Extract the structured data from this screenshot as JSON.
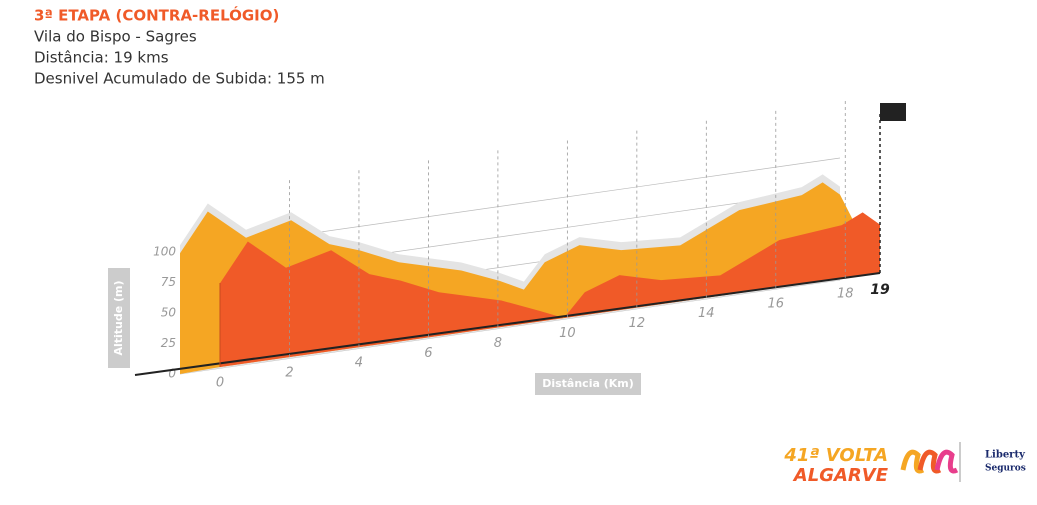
{
  "chart_data": {
    "type": "profile",
    "title": "3ª ETAPA (CONTRA-RELÓGIO)",
    "subtitle": [
      "Vila do Bispo - Sagres",
      "Distância: 19 kms",
      "Desnivel Acumulado de Subida: 155 m"
    ],
    "y_label": "Altitude (m)",
    "x_label": "Distância (Km)",
    "x": [
      0,
      0.8,
      1.9,
      3.2,
      4.3,
      5.2,
      6.3,
      8.1,
      9.2,
      9.9,
      10.5,
      11.5,
      12.7,
      14.4,
      16.1,
      17.9,
      18.5,
      19
    ],
    "values": [
      99,
      130,
      104,
      113,
      89,
      80,
      66,
      52,
      39,
      29,
      49,
      59,
      50,
      47,
      69,
      74,
      82,
      70
    ],
    "color": "#f5a623",
    "front_color": "#f05a28",
    "xlim": [
      0,
      19
    ],
    "xticks": [
      0,
      2,
      4,
      6,
      8,
      10,
      12,
      14,
      16,
      18,
      19
    ],
    "ylim": [
      0,
      150
    ],
    "yticks": [
      0,
      25,
      50,
      75,
      100
    ],
    "grid": true
  },
  "logo": {
    "edition": "41ª VOLTA",
    "name": "ALGARVE",
    "sponsor": [
      "Liberty",
      "Seguros"
    ]
  }
}
